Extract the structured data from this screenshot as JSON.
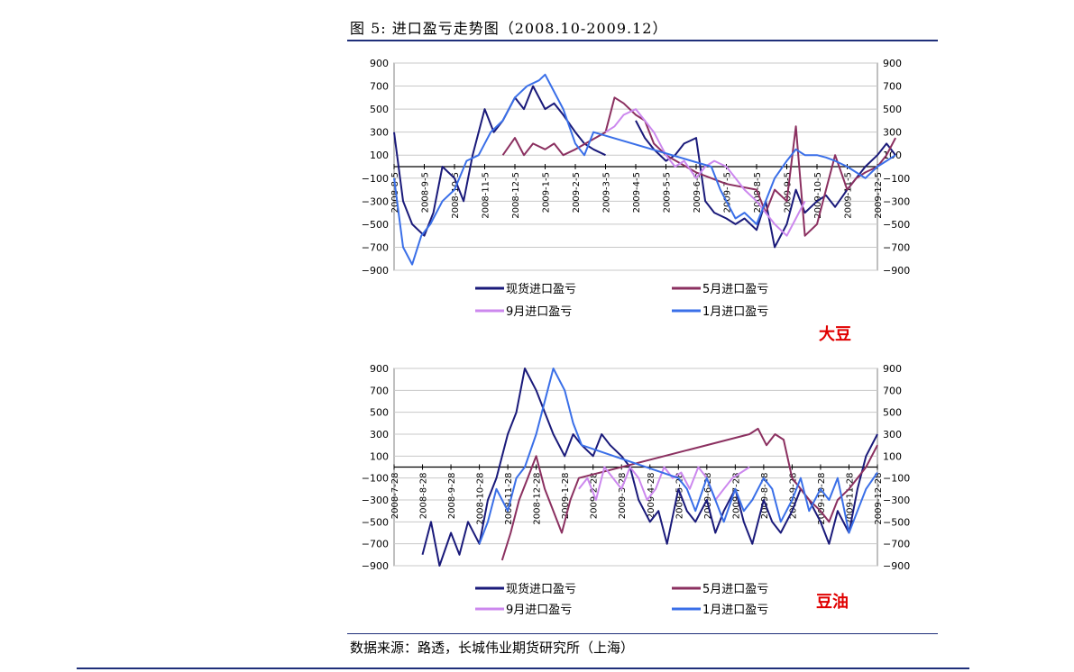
{
  "figure": {
    "title": "图 5: 进口盈亏走势图（2008.10-2009.12）",
    "source": "数据来源：路透，长城伟业期货研究所（上海）"
  },
  "colors": {
    "spot": "#1a1a7a",
    "may": "#8b3060",
    "sep": "#cc88ee",
    "jan": "#3a6fe8",
    "rule": "#1f2f7a",
    "tag": "#e00000"
  },
  "chart_data": [
    {
      "type": "line",
      "tag": "大豆",
      "ylim": [
        -900,
        900
      ],
      "yticks": [
        900,
        700,
        500,
        300,
        100,
        -100,
        -300,
        -500,
        -700,
        -900
      ],
      "x_ticks": [
        "2008-8-5",
        "2008-9-5",
        "2008-10-5",
        "2008-11-5",
        "2008-12-5",
        "2009-1-5",
        "2009-2-5",
        "2009-3-5",
        "2009-4-5",
        "2009-5-5",
        "2009-6-5",
        "2009-7-5",
        "2009-8-5",
        "2009-9-5",
        "2009-10-5",
        "2009-11-5",
        "2009-12-5"
      ],
      "grid": true,
      "legend": "bottom",
      "series": [
        {
          "name": "现货进口盈亏",
          "color_key": "spot",
          "x": [
            0,
            0.3,
            0.6,
            1,
            1.3,
            1.6,
            2,
            2.3,
            2.6,
            3,
            3.3,
            3.6,
            4,
            4.3,
            4.6,
            5,
            5.3,
            5.6,
            6,
            6.3,
            6.6,
            7,
            7.3,
            7.6,
            8,
            8.3,
            8.6,
            9,
            9.3,
            9.6,
            10,
            10.3,
            10.6,
            11,
            11.3,
            11.6,
            12,
            12.3,
            12.6,
            13,
            13.3,
            13.6,
            14,
            14.3,
            14.6,
            15,
            15.3,
            15.6,
            16,
            16.3,
            16.6
          ],
          "values": [
            300,
            -300,
            -500,
            -600,
            -400,
            0,
            -100,
            -300,
            100,
            500,
            300,
            400,
            600,
            500,
            700,
            500,
            550,
            450,
            300,
            200,
            150,
            100,
            null,
            null,
            400,
            250,
            150,
            50,
            100,
            200,
            250,
            -300,
            -400,
            -450,
            -500,
            -450,
            -550,
            -300,
            -700,
            -500,
            -200,
            -400,
            -300,
            -250,
            -350,
            -200,
            -100,
            0,
            100,
            200,
            100
          ]
        },
        {
          "name": "5月进口盈亏",
          "color_key": "may",
          "x": [
            3.6,
            4,
            4.3,
            4.6,
            5,
            5.3,
            5.6,
            6,
            7,
            7.3,
            7.6,
            8,
            8.3,
            8.6,
            9,
            10,
            11,
            12,
            12.3,
            12.6,
            13,
            13.3,
            13.6,
            14,
            14.3,
            14.6,
            15,
            15.3,
            15.6,
            16,
            16.3,
            16.6
          ],
          "values": [
            100,
            250,
            100,
            200,
            150,
            200,
            100,
            150,
            300,
            600,
            550,
            450,
            400,
            200,
            100,
            -50,
            -150,
            -200,
            -400,
            -200,
            -300,
            350,
            -600,
            -500,
            -200,
            100,
            -200,
            -100,
            -50,
            0,
            100,
            250
          ]
        },
        {
          "name": "9月进口盈亏",
          "color_key": "sep",
          "x": [
            7,
            7.3,
            7.6,
            8,
            8.3,
            8.6,
            9,
            9.3,
            9.6,
            10,
            10.3,
            10.6,
            11,
            11.3,
            11.6,
            12,
            12.3,
            12.6,
            13,
            13.3,
            13.6
          ],
          "values": [
            300,
            350,
            450,
            500,
            400,
            300,
            100,
            0,
            50,
            -100,
            0,
            50,
            0,
            -100,
            -200,
            -300,
            -400,
            -500,
            -600,
            -450,
            -300
          ]
        },
        {
          "name": "1月进口盈亏",
          "color_key": "jan",
          "x": [
            0,
            0.3,
            0.6,
            0.9,
            1.2,
            1.6,
            2,
            2.4,
            2.8,
            3.2,
            3.6,
            4,
            4.4,
            4.8,
            5,
            5.3,
            5.6,
            6,
            6.3,
            6.6,
            10.5,
            10.8,
            11,
            11.3,
            11.6,
            12,
            12.3,
            12.6,
            13,
            13.3,
            13.6,
            14,
            14.3,
            14.6,
            15,
            15.3,
            15.6,
            16,
            16.3,
            16.6
          ],
          "values": [
            -100,
            -700,
            -850,
            -600,
            -500,
            -300,
            -200,
            50,
            100,
            300,
            400,
            600,
            700,
            750,
            800,
            650,
            500,
            200,
            100,
            300,
            0,
            -200,
            -300,
            -450,
            -400,
            -500,
            -300,
            -100,
            50,
            150,
            100,
            100,
            80,
            50,
            0,
            -50,
            -100,
            0,
            50,
            100
          ]
        }
      ]
    },
    {
      "type": "line",
      "tag": "豆油",
      "ylim": [
        -900,
        900
      ],
      "yticks": [
        900,
        700,
        500,
        300,
        100,
        -100,
        -300,
        -500,
        -700,
        -900
      ],
      "x_ticks": [
        "2008-7-28",
        "2008-8-28",
        "2008-9-28",
        "2008-10-28",
        "2008-11-28",
        "2008-12-28",
        "2009-1-28",
        "2009-2-28",
        "2009-3-28",
        "2009-4-28",
        "2009-5-28",
        "2009-6-28",
        "2009-7-28",
        "2009-8-28",
        "2009-9-28",
        "2009-10-28",
        "2009-11-28",
        "2009-12-28"
      ],
      "grid": true,
      "legend": "bottom",
      "series": [
        {
          "name": "现货进口盈亏",
          "color_key": "spot",
          "x": [
            1,
            1.3,
            1.6,
            2,
            2.3,
            2.6,
            3,
            3.3,
            3.6,
            4,
            4.3,
            4.6,
            5,
            5.3,
            5.6,
            6,
            6.3,
            6.6,
            7,
            7.3,
            7.6,
            8,
            8.3,
            8.6,
            9,
            9.3,
            9.6,
            10,
            10.3,
            10.6,
            11,
            11.3,
            11.6,
            12,
            12.3,
            12.6,
            13,
            13.3,
            13.6,
            14,
            14.3,
            14.6,
            15,
            15.3,
            15.6,
            16,
            16.3,
            16.6,
            17
          ],
          "values": [
            -800,
            -500,
            -900,
            -600,
            -800,
            -500,
            -700,
            -300,
            -100,
            300,
            500,
            900,
            700,
            500,
            300,
            100,
            300,
            200,
            100,
            300,
            200,
            100,
            0,
            -300,
            -500,
            -400,
            -700,
            -200,
            -400,
            -500,
            -300,
            -600,
            -400,
            -200,
            -500,
            -700,
            -300,
            -500,
            -600,
            -400,
            -200,
            -300,
            -500,
            -700,
            -400,
            -600,
            -200,
            100,
            300
          ]
        },
        {
          "name": "5月进口盈亏",
          "color_key": "may",
          "x": [
            3.8,
            4.1,
            4.4,
            4.7,
            5,
            5.3,
            5.6,
            5.9,
            6.2,
            6.5,
            12.5,
            12.8,
            13.1,
            13.4,
            13.7,
            14,
            14.3,
            14.6,
            15,
            15.3,
            15.6,
            16,
            16.3,
            16.6,
            17
          ],
          "values": [
            -850,
            -600,
            -300,
            -100,
            100,
            -200,
            -400,
            -600,
            -300,
            -100,
            300,
            350,
            200,
            300,
            250,
            -100,
            -200,
            -300,
            -400,
            -500,
            -300,
            -200,
            -100,
            0,
            200
          ]
        },
        {
          "name": "9月进口盈亏",
          "color_key": "sep",
          "x": [
            6.5,
            6.8,
            7.1,
            7.4,
            7.7,
            8,
            8.3,
            8.6,
            8.9,
            9.2,
            9.5,
            9.8,
            10.1,
            10.4,
            10.7,
            11,
            11.3,
            11.6,
            11.9,
            12.2,
            12.5
          ],
          "values": [
            -200,
            -100,
            -300,
            0,
            -100,
            -200,
            0,
            -100,
            -300,
            -200,
            0,
            -100,
            -50,
            -200,
            0,
            -100,
            -300,
            -200,
            -100,
            -50,
            0
          ]
        },
        {
          "name": "1月进口盈亏",
          "color_key": "jan",
          "x": [
            3,
            3.3,
            3.6,
            4,
            4.3,
            4.6,
            5,
            5.3,
            5.6,
            6,
            6.3,
            6.6,
            10,
            10.3,
            10.6,
            11,
            11.3,
            11.6,
            12,
            12.3,
            12.6,
            13,
            13.3,
            13.6,
            14,
            14.3,
            14.6,
            15,
            15.3,
            15.6,
            16,
            16.3,
            16.6,
            17
          ],
          "values": [
            -700,
            -500,
            -200,
            -400,
            -100,
            0,
            300,
            600,
            900,
            700,
            400,
            200,
            -100,
            -200,
            -400,
            -100,
            -300,
            -500,
            -200,
            -400,
            -300,
            -100,
            -200,
            -500,
            -300,
            -100,
            -400,
            -200,
            -300,
            -100,
            -600,
            -400,
            -200,
            -50
          ]
        }
      ]
    }
  ]
}
